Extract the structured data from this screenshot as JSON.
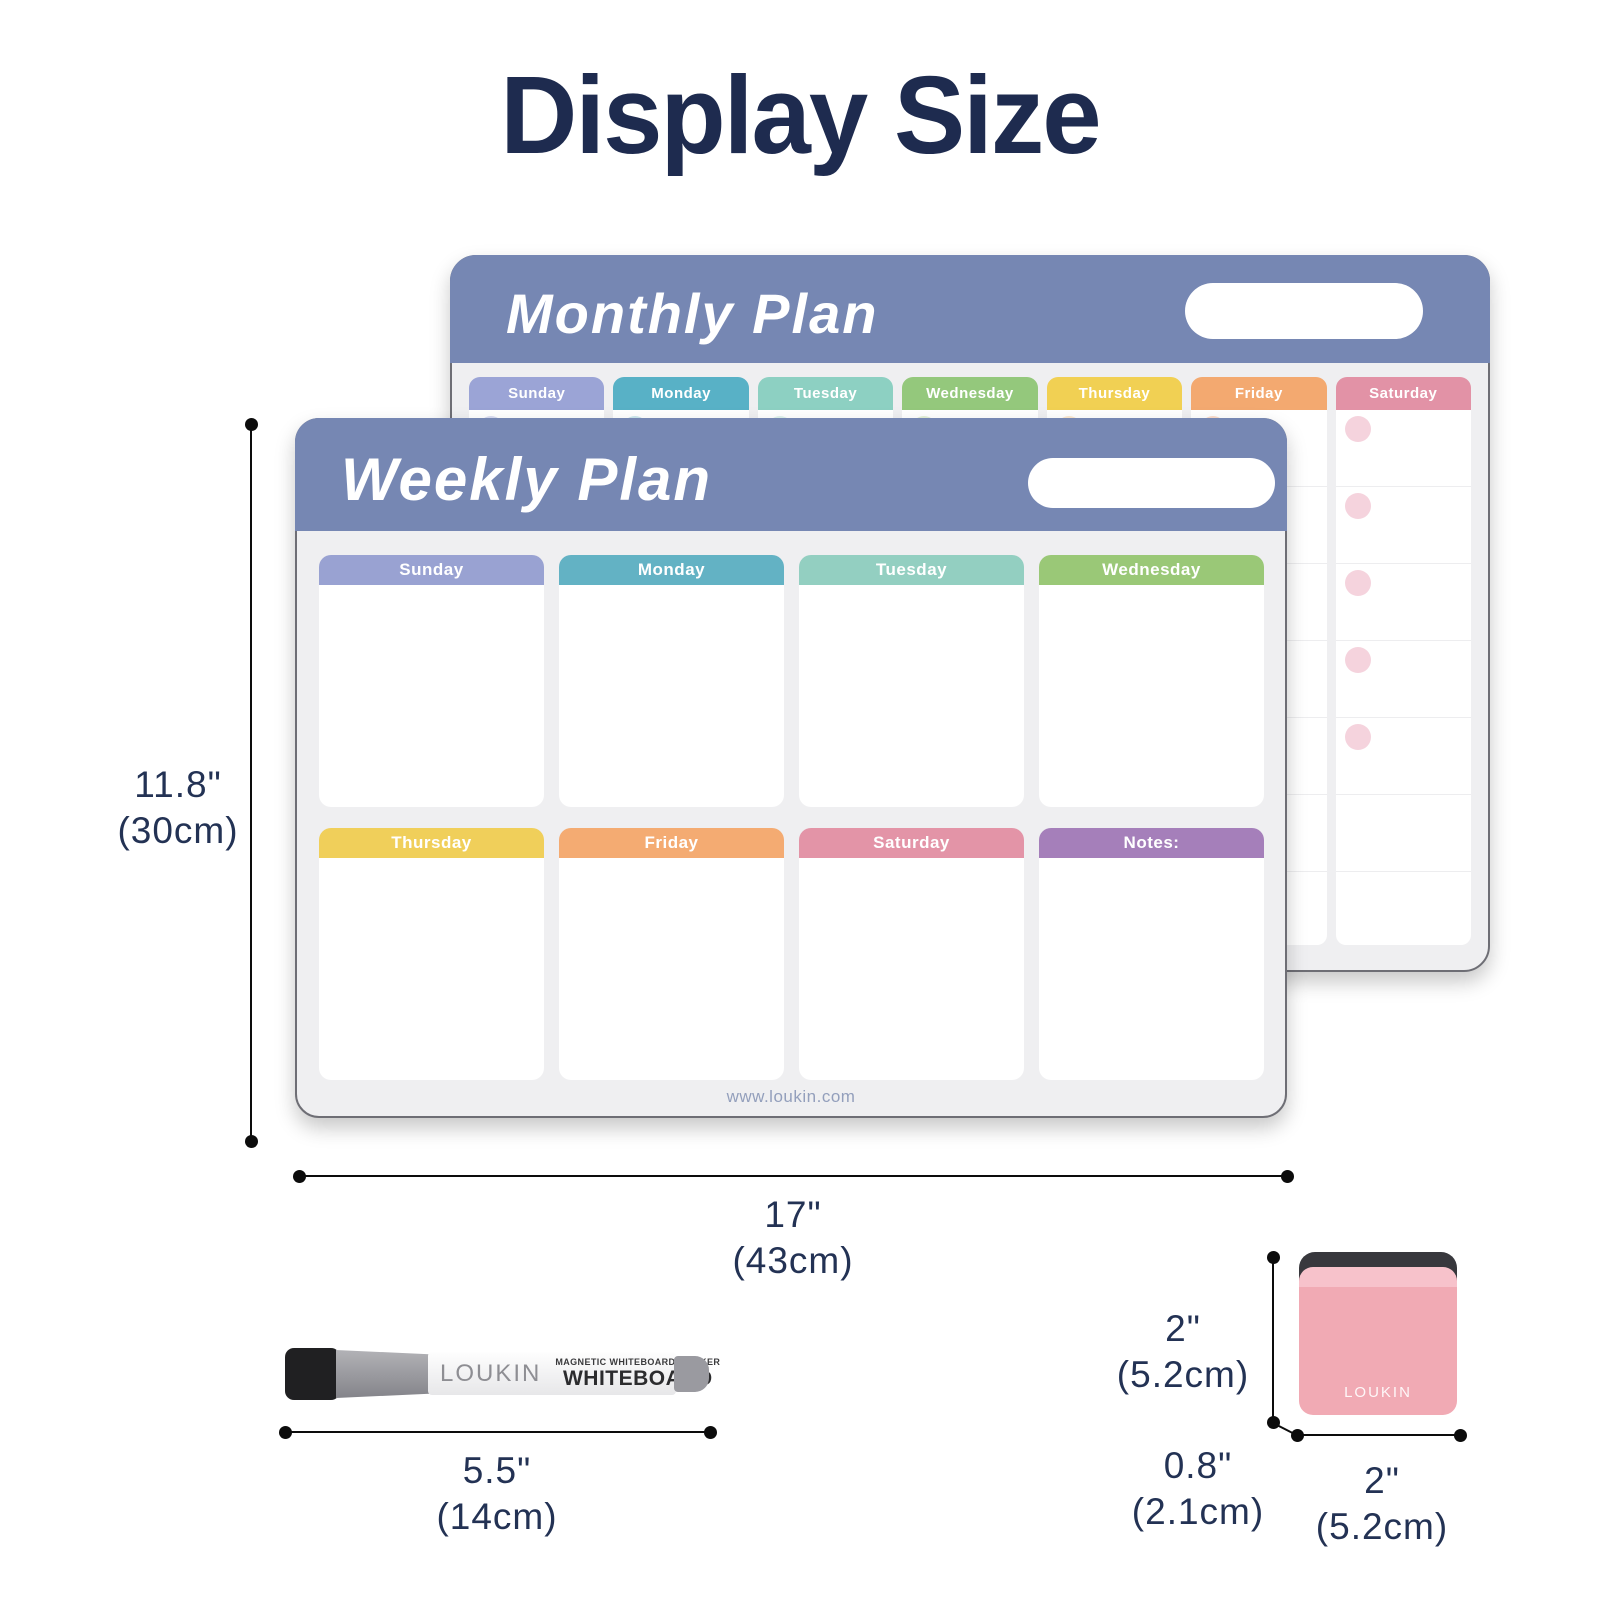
{
  "page": {
    "title": "Display Size"
  },
  "colors": {
    "title_navy": "#1e2b4f",
    "header_blue": "#7687b3",
    "board_bg": "#efeff1",
    "saturday_dot_pink": "#f5d3dd"
  },
  "monthly_board": {
    "title": "Monthly Plan",
    "days": [
      {
        "label": "Sunday",
        "color": "#9ba4d6",
        "dot": "#d8dcf1"
      },
      {
        "label": "Monday",
        "color": "#58b1c6",
        "dot": "#cce7ee"
      },
      {
        "label": "Tuesday",
        "color": "#8dd0c2",
        "dot": "#def1ec"
      },
      {
        "label": "Wednesday",
        "color": "#94c87c",
        "dot": "#e3f0d7"
      },
      {
        "label": "Thursday",
        "color": "#f1d053",
        "dot": "#fbe8cf"
      },
      {
        "label": "Friday",
        "color": "#f3a970",
        "dot": "#fbdccb"
      },
      {
        "label": "Saturday",
        "color": "#e292a6",
        "dot": "#f5d3dd"
      }
    ]
  },
  "weekly_board": {
    "title": "Weekly Plan",
    "cells": [
      {
        "label": "Sunday",
        "color": "#99a2d2"
      },
      {
        "label": "Monday",
        "color": "#63b2c4"
      },
      {
        "label": "Tuesday",
        "color": "#93cfc1"
      },
      {
        "label": "Wednesday",
        "color": "#9ac877"
      },
      {
        "label": "Thursday",
        "color": "#f0cf5a"
      },
      {
        "label": "Friday",
        "color": "#f4ab72"
      },
      {
        "label": "Saturday",
        "color": "#e394a7"
      },
      {
        "label": "Notes:",
        "color": "#a57fba"
      }
    ],
    "footer_url": "www.loukin.com"
  },
  "dimensions": {
    "board_height": {
      "inches": "11.8\"",
      "metric": "(30cm)"
    },
    "board_width": {
      "inches": "17\"",
      "metric": "(43cm)"
    },
    "marker_length": {
      "inches": "5.5\"",
      "metric": "(14cm)"
    },
    "eraser_height": {
      "inches": "2\"",
      "metric": "(5.2cm)"
    },
    "eraser_depth": {
      "inches": "0.8\"",
      "metric": "(2.1cm)"
    },
    "eraser_width": {
      "inches": "2\"",
      "metric": "(5.2cm)"
    }
  },
  "marker": {
    "brand": "LOUKIN",
    "subtitle": "MAGNETIC WHITEBOARD MARKER",
    "label": "WHITEBOARD"
  },
  "eraser": {
    "brand": "LOUKIN"
  }
}
